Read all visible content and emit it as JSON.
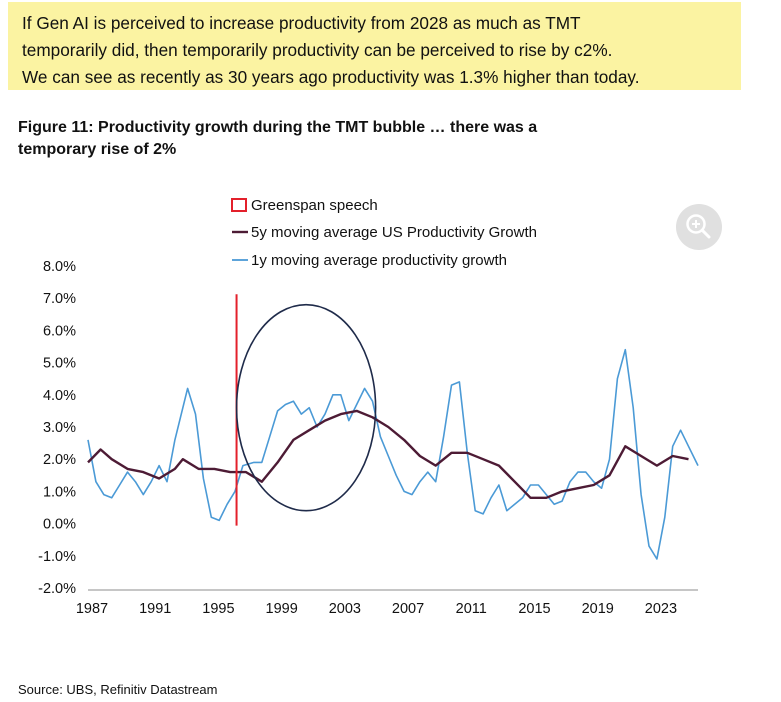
{
  "callout": {
    "lines": [
      "If Gen AI is perceived to increase productivity from 2028 as much as TMT",
      "temporarily did, then temporarily productivity can be perceived to rise by c2%.",
      "We can see as recently as 30 years ago productivity was 1.3% higher than today."
    ],
    "background": "#fbf3a2"
  },
  "figure_title": {
    "line1": "Figure 11: Productivity growth during the TMT bubble … there was a",
    "line2": "temporary rise of 2%"
  },
  "source": "Source: UBS, Refinitiv Datastream",
  "zoom_button": {
    "icon": "zoom-in-icon"
  },
  "chart_data": {
    "type": "line",
    "title": "",
    "xlabel": "",
    "ylabel": "",
    "ylim": [
      -2.0,
      8.0
    ],
    "xlim": [
      1987,
      2025.6
    ],
    "y_ticks": [
      "8.0%",
      "7.0%",
      "6.0%",
      "5.0%",
      "4.0%",
      "3.0%",
      "2.0%",
      "1.0%",
      "0.0%",
      "-1.0%",
      "-2.0%"
    ],
    "y_tick_values": [
      8,
      7,
      6,
      5,
      4,
      3,
      2,
      1,
      0,
      -1,
      -2
    ],
    "x_ticks": [
      "1987",
      "1991",
      "1995",
      "1999",
      "2003",
      "2007",
      "2011",
      "2015",
      "2019",
      "2023"
    ],
    "x_tick_values": [
      1987,
      1991,
      1995,
      1999,
      2003,
      2007,
      2011,
      2015,
      2019,
      2023
    ],
    "legend_position": "top",
    "series": [
      {
        "name": "Greenspan speech",
        "kind": "vertical-line",
        "color": "#e3202b",
        "x": 1996.4,
        "y_range": [
          0.0,
          7.0
        ]
      },
      {
        "name": "5y moving average US Productivity Growth",
        "color": "#4d1b35",
        "points": [
          [
            1987.0,
            1.9
          ],
          [
            1987.8,
            2.3
          ],
          [
            1988.5,
            2.0
          ],
          [
            1989.5,
            1.7
          ],
          [
            1990.5,
            1.6
          ],
          [
            1991.5,
            1.4
          ],
          [
            1992.5,
            1.7
          ],
          [
            1993.0,
            2.0
          ],
          [
            1994.0,
            1.7
          ],
          [
            1995.0,
            1.7
          ],
          [
            1996.0,
            1.6
          ],
          [
            1997.0,
            1.6
          ],
          [
            1998.0,
            1.3
          ],
          [
            1999.0,
            1.9
          ],
          [
            2000.0,
            2.6
          ],
          [
            2001.0,
            2.9
          ],
          [
            2002.0,
            3.2
          ],
          [
            2003.0,
            3.4
          ],
          [
            2004.0,
            3.5
          ],
          [
            2005.0,
            3.3
          ],
          [
            2006.0,
            3.0
          ],
          [
            2007.0,
            2.6
          ],
          [
            2008.0,
            2.1
          ],
          [
            2009.0,
            1.8
          ],
          [
            2010.0,
            2.2
          ],
          [
            2011.0,
            2.2
          ],
          [
            2012.0,
            2.0
          ],
          [
            2013.0,
            1.8
          ],
          [
            2014.0,
            1.3
          ],
          [
            2015.0,
            0.8
          ],
          [
            2016.0,
            0.8
          ],
          [
            2017.0,
            1.0
          ],
          [
            2018.0,
            1.1
          ],
          [
            2019.0,
            1.2
          ],
          [
            2020.0,
            1.5
          ],
          [
            2021.0,
            2.4
          ],
          [
            2022.0,
            2.1
          ],
          [
            2023.0,
            1.8
          ],
          [
            2024.0,
            2.1
          ],
          [
            2025.0,
            2.0
          ]
        ]
      },
      {
        "name": "1y moving average productivity growth",
        "color": "#4b9ad6",
        "points": [
          [
            1987.0,
            2.6
          ],
          [
            1987.5,
            1.3
          ],
          [
            1988.0,
            0.9
          ],
          [
            1988.5,
            0.8
          ],
          [
            1989.0,
            1.2
          ],
          [
            1989.5,
            1.6
          ],
          [
            1990.0,
            1.3
          ],
          [
            1990.5,
            0.9
          ],
          [
            1991.0,
            1.3
          ],
          [
            1991.5,
            1.8
          ],
          [
            1992.0,
            1.3
          ],
          [
            1992.5,
            2.6
          ],
          [
            1993.3,
            4.2
          ],
          [
            1993.8,
            3.4
          ],
          [
            1994.3,
            1.4
          ],
          [
            1994.8,
            0.2
          ],
          [
            1995.3,
            0.1
          ],
          [
            1995.8,
            0.6
          ],
          [
            1996.3,
            1.0
          ],
          [
            1996.8,
            1.8
          ],
          [
            1997.5,
            1.9
          ],
          [
            1998.0,
            1.9
          ],
          [
            1998.5,
            2.7
          ],
          [
            1999.0,
            3.5
          ],
          [
            1999.5,
            3.7
          ],
          [
            2000.0,
            3.8
          ],
          [
            2000.5,
            3.4
          ],
          [
            2001.0,
            3.6
          ],
          [
            2001.5,
            3.0
          ],
          [
            2002.0,
            3.4
          ],
          [
            2002.5,
            4.0
          ],
          [
            2003.0,
            4.0
          ],
          [
            2003.5,
            3.2
          ],
          [
            2004.0,
            3.7
          ],
          [
            2004.5,
            4.2
          ],
          [
            2005.0,
            3.8
          ],
          [
            2005.5,
            2.7
          ],
          [
            2006.0,
            2.1
          ],
          [
            2006.5,
            1.5
          ],
          [
            2007.0,
            1.0
          ],
          [
            2007.5,
            0.9
          ],
          [
            2008.0,
            1.3
          ],
          [
            2008.5,
            1.6
          ],
          [
            2009.0,
            1.3
          ],
          [
            2009.5,
            2.7
          ],
          [
            2010.0,
            4.3
          ],
          [
            2010.5,
            4.4
          ],
          [
            2011.0,
            2.2
          ],
          [
            2011.5,
            0.4
          ],
          [
            2012.0,
            0.3
          ],
          [
            2012.5,
            0.8
          ],
          [
            2013.0,
            1.2
          ],
          [
            2013.5,
            0.4
          ],
          [
            2014.0,
            0.6
          ],
          [
            2014.5,
            0.8
          ],
          [
            2015.0,
            1.2
          ],
          [
            2015.5,
            1.2
          ],
          [
            2016.0,
            0.9
          ],
          [
            2016.5,
            0.6
          ],
          [
            2017.0,
            0.7
          ],
          [
            2017.5,
            1.3
          ],
          [
            2018.0,
            1.6
          ],
          [
            2018.5,
            1.6
          ],
          [
            2019.0,
            1.3
          ],
          [
            2019.5,
            1.1
          ],
          [
            2020.0,
            2.0
          ],
          [
            2020.5,
            4.5
          ],
          [
            2021.0,
            5.4
          ],
          [
            2021.5,
            3.6
          ],
          [
            2022.0,
            0.9
          ],
          [
            2022.5,
            -0.7
          ],
          [
            2023.0,
            -1.1
          ],
          [
            2023.5,
            0.2
          ],
          [
            2024.0,
            2.4
          ],
          [
            2024.5,
            2.9
          ],
          [
            2025.0,
            2.4
          ],
          [
            2025.6,
            1.8
          ]
        ]
      }
    ],
    "annotations": [
      {
        "kind": "ellipse-highlight",
        "center": [
          2000.8,
          3.6
        ],
        "radius_x": 4.4,
        "radius_y": 3.2,
        "color": "#1f2b4a"
      }
    ]
  }
}
